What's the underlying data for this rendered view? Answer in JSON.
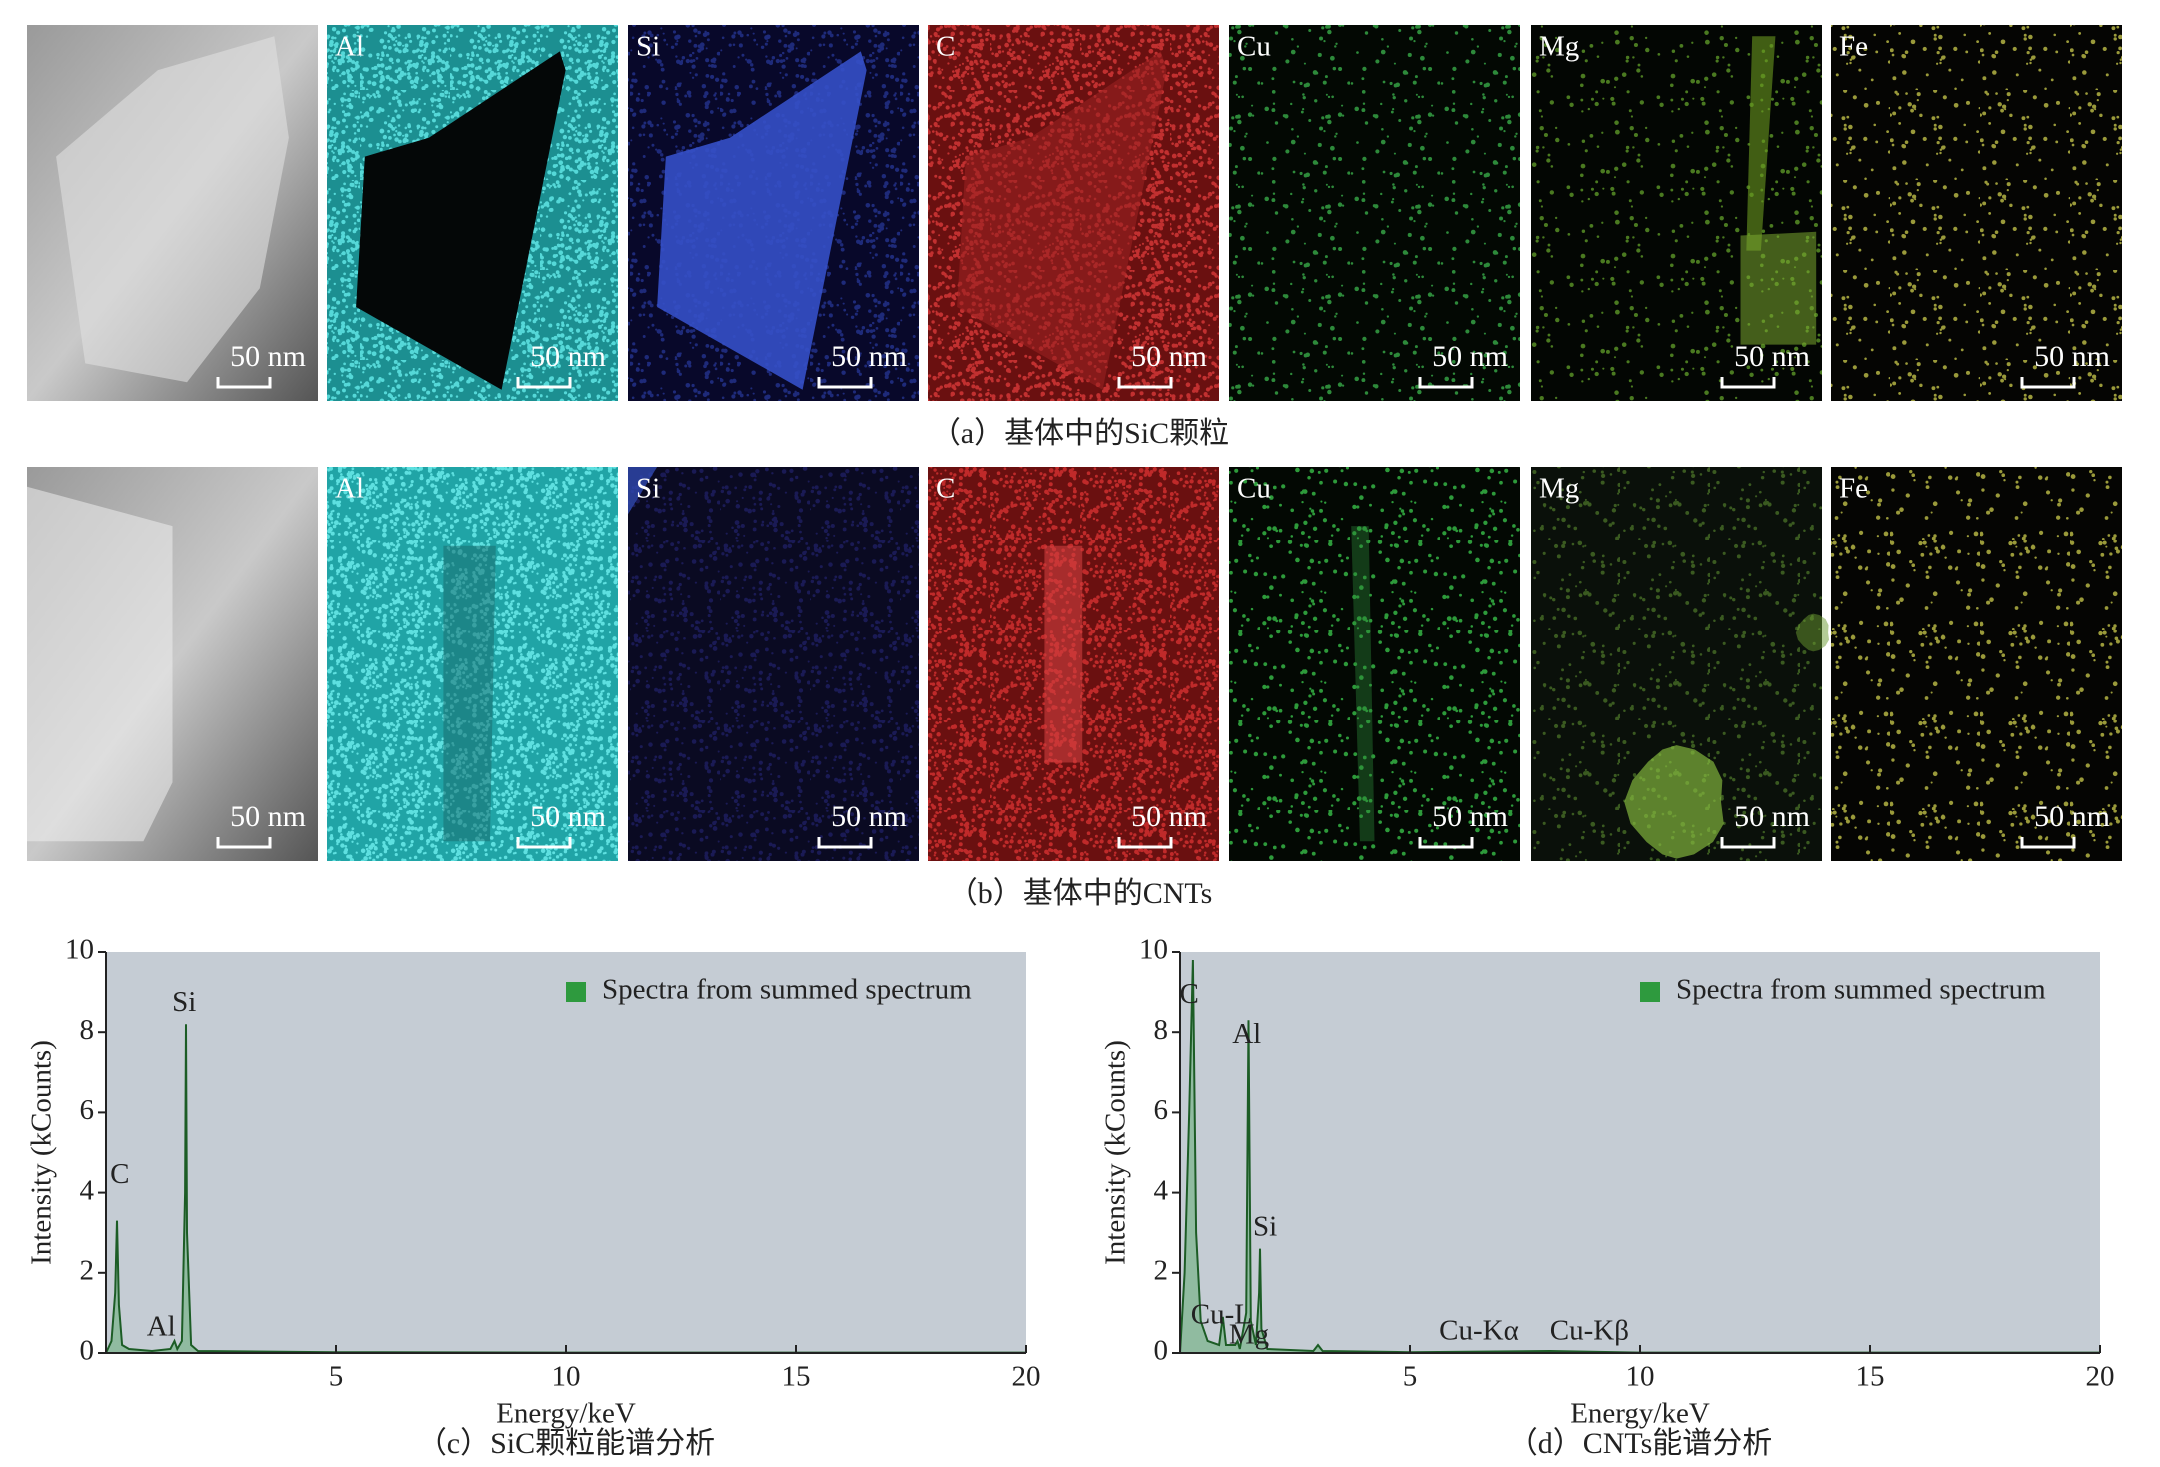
{
  "figure": {
    "rows": [
      {
        "caption": "（a）基体中的SiC颗粒",
        "panels": [
          {
            "scale": "50 nm"
          },
          {
            "label": "Al",
            "scale": "50 nm"
          },
          {
            "label": "Si",
            "scale": "50 nm"
          },
          {
            "label": "C",
            "scale": "50 nm"
          },
          {
            "label": "Cu",
            "scale": "50 nm"
          },
          {
            "label": "Mg",
            "scale": "50 nm"
          },
          {
            "label": "Fe",
            "scale": "50 nm"
          }
        ]
      },
      {
        "caption": "（b）基体中的CNTs",
        "panels": [
          {
            "scale": "50 nm"
          },
          {
            "label": "Al",
            "scale": "50 nm"
          },
          {
            "label": "Si",
            "scale": "50 nm"
          },
          {
            "label": "C",
            "scale": "50 nm"
          },
          {
            "label": "Cu",
            "scale": "50 nm"
          },
          {
            "label": "Mg",
            "scale": "50 nm"
          },
          {
            "label": "Fe",
            "scale": "50 nm"
          }
        ]
      }
    ]
  },
  "chart_data": [
    {
      "type": "line",
      "caption": "（c）SiC颗粒能谱分析",
      "x_label": "Energy/keV",
      "y_label": "Intensity (kCounts)",
      "x": [
        0,
        0.12,
        0.2,
        0.24,
        0.28,
        0.35,
        0.5,
        1.0,
        1.4,
        1.49,
        1.55,
        1.65,
        1.72,
        1.74,
        1.76,
        1.85,
        2.0,
        5,
        10,
        15,
        20
      ],
      "series": [
        {
          "name": "Spectra from summed spectrum",
          "color": "#2e9a3e",
          "values": [
            0,
            0.3,
            1.5,
            3.3,
            1.2,
            0.2,
            0.1,
            0.05,
            0.1,
            0.3,
            0.1,
            0.3,
            4,
            8.2,
            3,
            0.2,
            0.05,
            0.02,
            0.01,
            0.01,
            0.01
          ]
        }
      ],
      "annotations": [
        {
          "text": "Si",
          "x": 1.7,
          "y": 8.7
        },
        {
          "text": "C",
          "x": 0.3,
          "y": 4.4
        },
        {
          "text": "Al",
          "x": 1.2,
          "y": 0.6
        }
      ],
      "xlim": [
        0,
        20
      ],
      "xticks": [
        5,
        10,
        15,
        20
      ],
      "ylim": [
        0,
        10
      ],
      "yticks": [
        0,
        2,
        4,
        6,
        8,
        10
      ],
      "legend": "upper right"
    },
    {
      "type": "line",
      "caption": "（d）CNTs能谱分析",
      "x_label": "Energy/keV",
      "y_label": "Intensity (kCounts)",
      "x": [
        0,
        0.1,
        0.2,
        0.28,
        0.35,
        0.45,
        0.6,
        0.85,
        0.93,
        1.0,
        1.2,
        1.25,
        1.3,
        1.44,
        1.49,
        1.54,
        1.65,
        1.72,
        1.74,
        1.77,
        1.9,
        2.9,
        3.0,
        3.1,
        5,
        8.04,
        10,
        15,
        20
      ],
      "series": [
        {
          "name": "Spectra from summed spectrum",
          "color": "#2e9a3e",
          "values": [
            0,
            2,
            6,
            9.8,
            3,
            0.8,
            0.3,
            0.2,
            0.9,
            0.2,
            0.2,
            0.3,
            0.1,
            1,
            8.3,
            0.8,
            0.2,
            1.5,
            2.6,
            0.6,
            0.1,
            0.05,
            0.2,
            0.05,
            0.02,
            0.05,
            0.01,
            0.01,
            0.01
          ]
        }
      ],
      "annotations": [
        {
          "text": "C",
          "x": 0.2,
          "y": 8.9
        },
        {
          "text": "Al",
          "x": 1.45,
          "y": 7.9
        },
        {
          "text": "Si",
          "x": 1.85,
          "y": 3.1
        },
        {
          "text": "Cu-L",
          "x": 0.9,
          "y": 0.9
        },
        {
          "text": "Mg",
          "x": 1.5,
          "y": 0.4
        },
        {
          "text": "Cu-Kα",
          "x": 6.5,
          "y": 0.5
        },
        {
          "text": "Cu-Kβ",
          "x": 8.9,
          "y": 0.5
        }
      ],
      "xlim": [
        0,
        20
      ],
      "xticks": [
        5,
        10,
        15,
        20
      ],
      "ylim": [
        0,
        10
      ],
      "yticks": [
        0,
        2,
        4,
        6,
        8,
        10
      ],
      "legend": "upper right"
    }
  ]
}
